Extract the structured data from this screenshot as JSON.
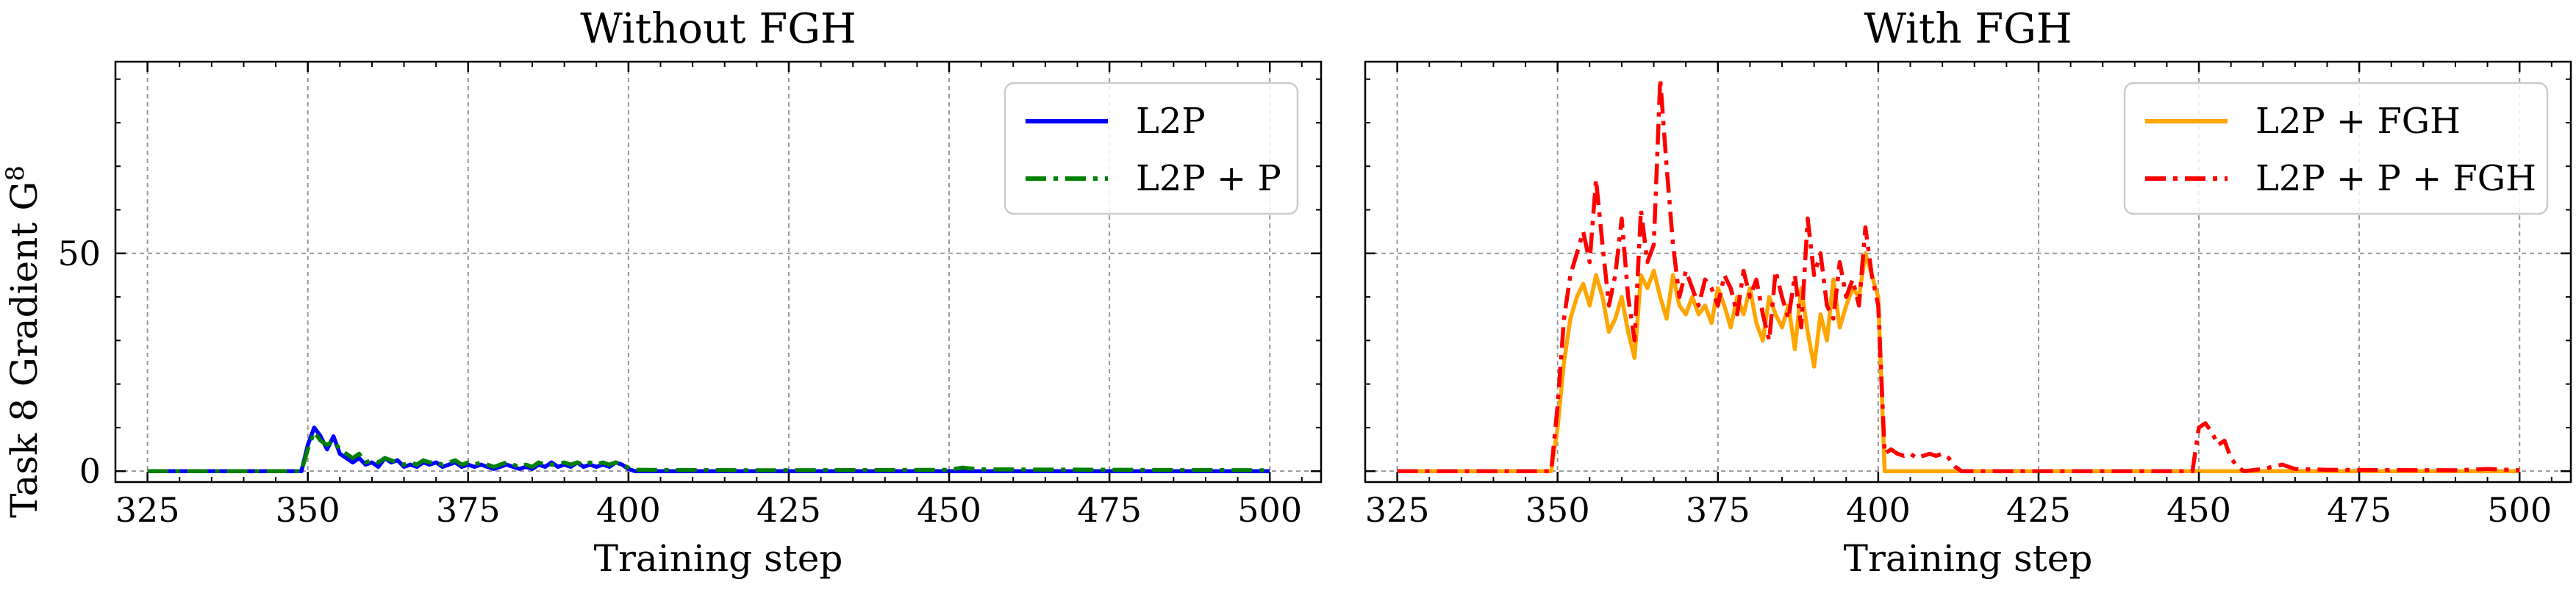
{
  "figure": {
    "ylabel": "Task 8 Gradient G",
    "ylabel_sup": "8"
  },
  "chart_data": [
    {
      "type": "line",
      "title": "Without FGH",
      "xlabel": "Training step",
      "ylabel": "Task 8 Gradient G^8",
      "xlim": [
        320,
        508
      ],
      "ylim": [
        -2.5,
        94
      ],
      "xticks": [
        325,
        350,
        375,
        400,
        425,
        450,
        475,
        500
      ],
      "yticks": [
        0,
        50
      ],
      "grid": true,
      "legend_position": "top-right",
      "series": [
        {
          "name": "L2P",
          "color": "#0000ff",
          "style": "solid",
          "points": [
            [
              325,
              0
            ],
            [
              349,
              0
            ],
            [
              350,
              6
            ],
            [
              351,
              10
            ],
            [
              352,
              8
            ],
            [
              353,
              5
            ],
            [
              354,
              8
            ],
            [
              355,
              4
            ],
            [
              356,
              3
            ],
            [
              357,
              2
            ],
            [
              358,
              3
            ],
            [
              359,
              1.5
            ],
            [
              360,
              2
            ],
            [
              361,
              1
            ],
            [
              362,
              3
            ],
            [
              363,
              2
            ],
            [
              364,
              2.5
            ],
            [
              365,
              1
            ],
            [
              366,
              1.5
            ],
            [
              367,
              1
            ],
            [
              368,
              2
            ],
            [
              369,
              1.5
            ],
            [
              370,
              2
            ],
            [
              371,
              1
            ],
            [
              372,
              1.5
            ],
            [
              373,
              2
            ],
            [
              374,
              1
            ],
            [
              375,
              1.5
            ],
            [
              376,
              1
            ],
            [
              377,
              1.5
            ],
            [
              378,
              1
            ],
            [
              379,
              0.5
            ],
            [
              380,
              1
            ],
            [
              381,
              1.5
            ],
            [
              382,
              1
            ],
            [
              383,
              0.5
            ],
            [
              384,
              1
            ],
            [
              385,
              0.5
            ],
            [
              386,
              1.5
            ],
            [
              387,
              1
            ],
            [
              388,
              2
            ],
            [
              389,
              1
            ],
            [
              390,
              1.5
            ],
            [
              391,
              1
            ],
            [
              392,
              2
            ],
            [
              393,
              1
            ],
            [
              394,
              1.5
            ],
            [
              395,
              1
            ],
            [
              396,
              1.5
            ],
            [
              397,
              1
            ],
            [
              398,
              2
            ],
            [
              399,
              1.5
            ],
            [
              400,
              0.5
            ],
            [
              401,
              0
            ],
            [
              500,
              0
            ]
          ]
        },
        {
          "name": "L2P + P",
          "color": "#008000",
          "style": "dashdot",
          "points": [
            [
              325,
              0
            ],
            [
              349,
              0
            ],
            [
              350,
              5
            ],
            [
              351,
              9
            ],
            [
              352,
              7
            ],
            [
              353,
              6
            ],
            [
              354,
              7
            ],
            [
              355,
              5
            ],
            [
              356,
              4
            ],
            [
              357,
              3
            ],
            [
              358,
              4
            ],
            [
              359,
              2
            ],
            [
              360,
              2.5
            ],
            [
              361,
              2
            ],
            [
              362,
              3
            ],
            [
              363,
              2.5
            ],
            [
              364,
              2
            ],
            [
              365,
              1.5
            ],
            [
              366,
              2
            ],
            [
              367,
              1.5
            ],
            [
              368,
              2.5
            ],
            [
              369,
              2
            ],
            [
              370,
              2
            ],
            [
              371,
              1.5
            ],
            [
              372,
              2
            ],
            [
              373,
              2.5
            ],
            [
              374,
              1.5
            ],
            [
              375,
              2
            ],
            [
              376,
              1.5
            ],
            [
              377,
              2
            ],
            [
              378,
              1.5
            ],
            [
              379,
              1
            ],
            [
              380,
              1.5
            ],
            [
              381,
              2
            ],
            [
              382,
              1.5
            ],
            [
              383,
              1
            ],
            [
              384,
              1.5
            ],
            [
              385,
              1
            ],
            [
              386,
              2
            ],
            [
              387,
              1.5
            ],
            [
              388,
              1.5
            ],
            [
              389,
              1.5
            ],
            [
              390,
              2
            ],
            [
              391,
              1.5
            ],
            [
              392,
              2
            ],
            [
              393,
              1.5
            ],
            [
              394,
              2
            ],
            [
              395,
              1.5
            ],
            [
              396,
              2
            ],
            [
              397,
              1.5
            ],
            [
              398,
              2
            ],
            [
              399,
              1.5
            ],
            [
              400,
              0.8
            ],
            [
              401,
              0.3
            ],
            [
              420,
              0.2
            ],
            [
              450,
              0.3
            ],
            [
              452,
              0.8
            ],
            [
              455,
              0.4
            ],
            [
              500,
              0.2
            ]
          ]
        }
      ]
    },
    {
      "type": "line",
      "title": "With FGH",
      "xlabel": "Training step",
      "xlim": [
        320,
        508
      ],
      "ylim": [
        -2.5,
        94
      ],
      "xticks": [
        325,
        350,
        375,
        400,
        425,
        450,
        475,
        500
      ],
      "yticks": [
        0,
        50
      ],
      "grid": true,
      "legend_position": "top-right",
      "series": [
        {
          "name": "L2P + FGH",
          "color": "#ffa500",
          "style": "solid",
          "points": [
            [
              325,
              0
            ],
            [
              349,
              0
            ],
            [
              350,
              10
            ],
            [
              351,
              25
            ],
            [
              352,
              35
            ],
            [
              353,
              40
            ],
            [
              354,
              43
            ],
            [
              355,
              38
            ],
            [
              356,
              45
            ],
            [
              357,
              40
            ],
            [
              358,
              32
            ],
            [
              359,
              35
            ],
            [
              360,
              40
            ],
            [
              361,
              32
            ],
            [
              362,
              26
            ],
            [
              363,
              45
            ],
            [
              364,
              42
            ],
            [
              365,
              46
            ],
            [
              366,
              40
            ],
            [
              367,
              35
            ],
            [
              368,
              45
            ],
            [
              369,
              38
            ],
            [
              370,
              36
            ],
            [
              371,
              40
            ],
            [
              372,
              36
            ],
            [
              373,
              38
            ],
            [
              374,
              34
            ],
            [
              375,
              42
            ],
            [
              376,
              38
            ],
            [
              377,
              33
            ],
            [
              378,
              40
            ],
            [
              379,
              36
            ],
            [
              380,
              42
            ],
            [
              381,
              34
            ],
            [
              382,
              30
            ],
            [
              383,
              40
            ],
            [
              384,
              36
            ],
            [
              385,
              33
            ],
            [
              386,
              38
            ],
            [
              387,
              28
            ],
            [
              388,
              42
            ],
            [
              389,
              32
            ],
            [
              390,
              24
            ],
            [
              391,
              36
            ],
            [
              392,
              30
            ],
            [
              393,
              44
            ],
            [
              394,
              33
            ],
            [
              395,
              38
            ],
            [
              396,
              42
            ],
            [
              397,
              40
            ],
            [
              398,
              50
            ],
            [
              399,
              45
            ],
            [
              400,
              40
            ],
            [
              401,
              0
            ],
            [
              500,
              0
            ]
          ]
        },
        {
          "name": "L2P + P + FGH",
          "color": "#ff0000",
          "style": "dashdot",
          "points": [
            [
              325,
              0
            ],
            [
              349,
              0
            ],
            [
              350,
              15
            ],
            [
              351,
              35
            ],
            [
              352,
              45
            ],
            [
              353,
              50
            ],
            [
              354,
              55
            ],
            [
              355,
              48
            ],
            [
              356,
              67
            ],
            [
              357,
              52
            ],
            [
              358,
              38
            ],
            [
              359,
              45
            ],
            [
              360,
              58
            ],
            [
              361,
              40
            ],
            [
              362,
              30
            ],
            [
              363,
              60
            ],
            [
              364,
              48
            ],
            [
              365,
              52
            ],
            [
              366,
              90
            ],
            [
              367,
              70
            ],
            [
              368,
              52
            ],
            [
              369,
              40
            ],
            [
              370,
              46
            ],
            [
              371,
              42
            ],
            [
              372,
              38
            ],
            [
              373,
              44
            ],
            [
              374,
              42
            ],
            [
              375,
              38
            ],
            [
              376,
              45
            ],
            [
              377,
              42
            ],
            [
              378,
              36
            ],
            [
              379,
              46
            ],
            [
              380,
              40
            ],
            [
              381,
              44
            ],
            [
              382,
              36
            ],
            [
              383,
              30
            ],
            [
              384,
              46
            ],
            [
              385,
              40
            ],
            [
              386,
              35
            ],
            [
              387,
              45
            ],
            [
              388,
              33
            ],
            [
              389,
              58
            ],
            [
              390,
              45
            ],
            [
              391,
              50
            ],
            [
              392,
              38
            ],
            [
              393,
              35
            ],
            [
              394,
              48
            ],
            [
              395,
              40
            ],
            [
              396,
              44
            ],
            [
              397,
              38
            ],
            [
              398,
              56
            ],
            [
              399,
              45
            ],
            [
              400,
              38
            ],
            [
              401,
              4
            ],
            [
              402,
              5
            ],
            [
              403,
              4
            ],
            [
              404,
              3.5
            ],
            [
              405,
              4
            ],
            [
              406,
              3
            ],
            [
              407,
              3.5
            ],
            [
              408,
              4
            ],
            [
              409,
              3.5
            ],
            [
              410,
              4
            ],
            [
              411,
              3
            ],
            [
              412,
              1
            ],
            [
              413,
              0
            ],
            [
              449,
              0
            ],
            [
              450,
              10
            ],
            [
              451,
              11
            ],
            [
              452,
              9
            ],
            [
              453,
              6
            ],
            [
              454,
              7
            ],
            [
              455,
              3
            ],
            [
              456,
              1
            ],
            [
              457,
              0
            ],
            [
              460,
              0.5
            ],
            [
              463,
              1.5
            ],
            [
              465,
              0.5
            ],
            [
              470,
              0.3
            ],
            [
              490,
              0.2
            ],
            [
              495,
              0.5
            ],
            [
              500,
              0.2
            ]
          ]
        }
      ]
    }
  ]
}
